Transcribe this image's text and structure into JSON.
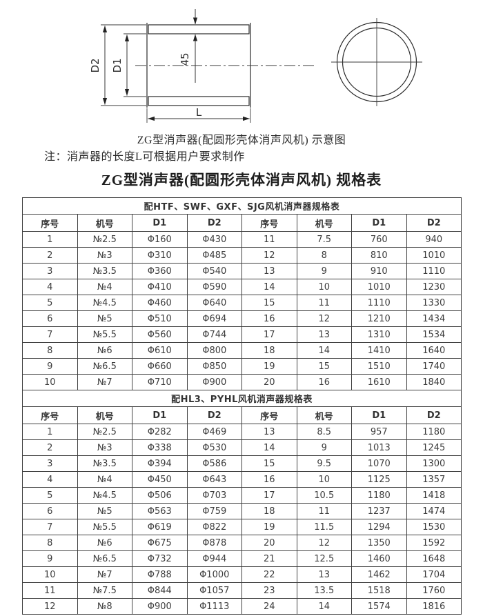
{
  "diagram": {
    "labels": {
      "outer_diameter": "D2",
      "inner_diameter": "D1",
      "wall_thickness": "45",
      "length": "L"
    },
    "caption": "ZG型消声器(配圆形壳体消声风机) 示意图",
    "note": "注：消声器的长度L可根据用户要求制作"
  },
  "title": "ZG型消声器(配圆形壳体消声风机) 规格表",
  "tables": [
    {
      "section_title": "配HTF、SWF、GXF、SJG风机消声器规格表",
      "columns": [
        "序号",
        "机号",
        "D1",
        "D2",
        "序号",
        "机号",
        "D1",
        "D2"
      ],
      "rows": [
        [
          "1",
          "№2.5",
          "Φ160",
          "Φ430",
          "11",
          "7.5",
          "760",
          "940"
        ],
        [
          "2",
          "№3",
          "Φ310",
          "Φ485",
          "12",
          "8",
          "810",
          "1010"
        ],
        [
          "3",
          "№3.5",
          "Φ360",
          "Φ540",
          "13",
          "9",
          "910",
          "1110"
        ],
        [
          "4",
          "№4",
          "Φ410",
          "Φ590",
          "14",
          "10",
          "1010",
          "1230"
        ],
        [
          "5",
          "№4.5",
          "Φ460",
          "Φ640",
          "15",
          "11",
          "1110",
          "1330"
        ],
        [
          "6",
          "№5",
          "Φ510",
          "Φ694",
          "16",
          "12",
          "1210",
          "1434"
        ],
        [
          "7",
          "№5.5",
          "Φ560",
          "Φ744",
          "17",
          "13",
          "1310",
          "1534"
        ],
        [
          "8",
          "№6",
          "Φ610",
          "Φ800",
          "18",
          "14",
          "1410",
          "1640"
        ],
        [
          "9",
          "№6.5",
          "Φ660",
          "Φ850",
          "19",
          "15",
          "1510",
          "1740"
        ],
        [
          "10",
          "№7",
          "Φ710",
          "Φ900",
          "20",
          "16",
          "1610",
          "1840"
        ]
      ]
    },
    {
      "section_title": "配HL3、PYHL风机消声器规格表",
      "columns": [
        "序号",
        "机号",
        "D1",
        "D2",
        "序号",
        "机号",
        "D1",
        "D2"
      ],
      "rows": [
        [
          "1",
          "№2.5",
          "Φ282",
          "Φ469",
          "13",
          "8.5",
          "957",
          "1180"
        ],
        [
          "2",
          "№3",
          "Φ338",
          "Φ530",
          "14",
          "9",
          "1013",
          "1245"
        ],
        [
          "3",
          "№3.5",
          "Φ394",
          "Φ586",
          "15",
          "9.5",
          "1070",
          "1300"
        ],
        [
          "4",
          "№4",
          "Φ450",
          "Φ643",
          "16",
          "10",
          "1125",
          "1357"
        ],
        [
          "5",
          "№4.5",
          "Φ506",
          "Φ703",
          "17",
          "10.5",
          "1180",
          "1418"
        ],
        [
          "6",
          "№5",
          "Φ563",
          "Φ759",
          "18",
          "11",
          "1237",
          "1474"
        ],
        [
          "7",
          "№5.5",
          "Φ619",
          "Φ822",
          "19",
          "11.5",
          "1294",
          "1530"
        ],
        [
          "8",
          "№6",
          "Φ675",
          "Φ878",
          "20",
          "12",
          "1350",
          "1592"
        ],
        [
          "9",
          "№6.5",
          "Φ732",
          "Φ944",
          "21",
          "12.5",
          "1460",
          "1648"
        ],
        [
          "10",
          "№7",
          "Φ788",
          "Φ1000",
          "22",
          "13",
          "1462",
          "1704"
        ],
        [
          "11",
          "№7.5",
          "Φ844",
          "Φ1057",
          "23",
          "13.5",
          "1518",
          "1760"
        ],
        [
          "12",
          "№8",
          "Φ900",
          "Φ1113",
          "24",
          "14",
          "1574",
          "1816"
        ]
      ]
    }
  ]
}
